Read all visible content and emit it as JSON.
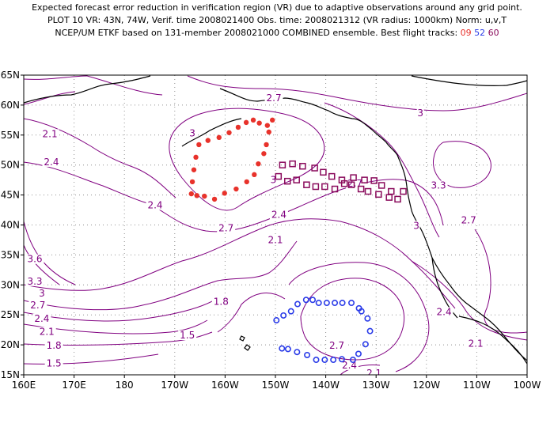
{
  "title_lines": [
    "Expected forecast error reduction in verification region (VR) due to adaptive observations around any grid point.",
    "PLOT 10 VR: 43N, 74W, Verif. time 2008021400 Obs. time: 2008021312 (VR radius: 1000km) Norm: u,v,T",
    "NCEP/UM ETKF based on 131-member 2008021000 COMBINED ensemble.  Best flight tracks: "
  ],
  "flight_labels": [
    {
      "text": "09",
      "color": "#e8322b"
    },
    {
      "text": "52",
      "color": "#2b3ce8"
    },
    {
      "text": "60",
      "color": "#8a0b5c"
    }
  ],
  "colors": {
    "contour": "#800080",
    "coast": "#000000",
    "grid": "#808080"
  },
  "y_ticks": [
    "65N",
    "60N",
    "55N",
    "50N",
    "45N",
    "40N",
    "35N",
    "30N",
    "25N",
    "20N",
    "15N"
  ],
  "x_ticks": [
    "160E",
    "170E",
    "180",
    "170W",
    "160W",
    "150W",
    "140W",
    "130W",
    "120W",
    "110W",
    "100W"
  ],
  "contour_labels": [
    {
      "text": "2.7",
      "lon": -150.3,
      "lat": 60.8
    },
    {
      "text": "3",
      "lon": -166.5,
      "lat": 54.9
    },
    {
      "text": "3",
      "lon": -150.4,
      "lat": 47.1
    },
    {
      "text": "3",
      "lon": -121.2,
      "lat": 58.3
    },
    {
      "text": "2.7",
      "lon": -134.2,
      "lat": 46.5
    },
    {
      "text": "3.3",
      "lon": -117.6,
      "lat": 46.2
    },
    {
      "text": "2.1",
      "lon": 165.2,
      "lat": 54.8
    },
    {
      "text": "2.4",
      "lon": 165.5,
      "lat": 50.1
    },
    {
      "text": "2.4",
      "lon": -173.9,
      "lat": 42.9
    },
    {
      "text": "2.7",
      "lon": -159.8,
      "lat": 39.1
    },
    {
      "text": "2.4",
      "lon": -149.3,
      "lat": 41.3
    },
    {
      "text": "2.1",
      "lon": -150.0,
      "lat": 37.1
    },
    {
      "text": "3",
      "lon": -122.0,
      "lat": 39.5
    },
    {
      "text": "2.7",
      "lon": -111.6,
      "lat": 40.4
    },
    {
      "text": "3.6",
      "lon": 162.2,
      "lat": 33.9
    },
    {
      "text": "3.3",
      "lon": 162.2,
      "lat": 30.2
    },
    {
      "text": "3",
      "lon": 163.6,
      "lat": 28.2
    },
    {
      "text": "2.7",
      "lon": 162.8,
      "lat": 26.2
    },
    {
      "text": "2.4",
      "lon": 163.6,
      "lat": 24.0
    },
    {
      "text": "2.1",
      "lon": 164.6,
      "lat": 21.8
    },
    {
      "text": "1.8",
      "lon": 166.0,
      "lat": 19.5
    },
    {
      "text": "1.5",
      "lon": 166.0,
      "lat": 16.5
    },
    {
      "text": "1.8",
      "lon": -160.8,
      "lat": 26.8
    },
    {
      "text": "1.5",
      "lon": -167.5,
      "lat": 21.2
    },
    {
      "text": "2.7",
      "lon": -137.8,
      "lat": 19.5
    },
    {
      "text": "2.4",
      "lon": -116.5,
      "lat": 25.1
    },
    {
      "text": "2.1",
      "lon": -110.2,
      "lat": 19.8
    },
    {
      "text": "2.4",
      "lon": -135.3,
      "lat": 16.2
    },
    {
      "text": "2.1",
      "lon": -130.4,
      "lat": 14.9
    }
  ],
  "flight_tracks": [
    {
      "id": "09",
      "marker": "dot",
      "color": "#e8322b",
      "points": [
        [
          -166.7,
          45.2
        ],
        [
          -166.5,
          47.2
        ],
        [
          -166.2,
          49.2
        ],
        [
          -165.8,
          51.3
        ],
        [
          -165.2,
          53.4
        ],
        [
          -163.4,
          54.1
        ],
        [
          -161.2,
          54.6
        ],
        [
          -159.2,
          55.4
        ],
        [
          -157.4,
          56.3
        ],
        [
          -155.8,
          57.1
        ],
        [
          -154.4,
          57.5
        ],
        [
          -153.2,
          57.0
        ],
        [
          -151.6,
          56.6
        ],
        [
          -150.6,
          57.5
        ],
        [
          -151.3,
          55.5
        ],
        [
          -151.8,
          53.4
        ],
        [
          -152.3,
          51.9
        ],
        [
          -153.4,
          50.2
        ],
        [
          -154.2,
          48.4
        ],
        [
          -155.7,
          47.2
        ],
        [
          -157.8,
          46.0
        ],
        [
          -160.1,
          45.3
        ],
        [
          -162.1,
          44.3
        ],
        [
          -164.1,
          44.8
        ],
        [
          -165.6,
          44.9
        ]
      ]
    },
    {
      "id": "60",
      "marker": "square",
      "color": "#8a0b5c",
      "points": [
        [
          -149.4,
          48.1
        ],
        [
          -148.6,
          50.0
        ],
        [
          -146.6,
          50.2
        ],
        [
          -144.6,
          49.8
        ],
        [
          -142.2,
          49.5
        ],
        [
          -140.5,
          48.8
        ],
        [
          -138.8,
          48.1
        ],
        [
          -136.8,
          47.5
        ],
        [
          -134.9,
          46.7
        ],
        [
          -133.0,
          46.0
        ],
        [
          -131.6,
          45.6
        ],
        [
          -129.5,
          45.1
        ],
        [
          -127.4,
          44.6
        ],
        [
          -125.7,
          44.3
        ],
        [
          -124.6,
          45.6
        ],
        [
          -127.0,
          45.6
        ],
        [
          -128.9,
          46.6
        ],
        [
          -130.4,
          47.4
        ],
        [
          -132.3,
          47.5
        ],
        [
          -134.5,
          47.9
        ],
        [
          -136.3,
          46.9
        ],
        [
          -138.2,
          46.0
        ],
        [
          -140.2,
          46.4
        ],
        [
          -142.0,
          46.4
        ],
        [
          -143.8,
          46.7
        ],
        [
          -145.8,
          47.5
        ],
        [
          -147.6,
          47.3
        ]
      ]
    },
    {
      "id": "52",
      "marker": "ring",
      "color": "#2b3ce8",
      "points": [
        [
          -149.8,
          24.1
        ],
        [
          -148.4,
          24.9
        ],
        [
          -146.9,
          25.6
        ],
        [
          -145.6,
          26.8
        ],
        [
          -143.9,
          27.5
        ],
        [
          -142.6,
          27.5
        ],
        [
          -141.4,
          27.0
        ],
        [
          -139.8,
          27.0
        ],
        [
          -138.2,
          27.0
        ],
        [
          -136.7,
          27.0
        ],
        [
          -134.9,
          27.0
        ],
        [
          -133.4,
          26.1
        ],
        [
          -132.9,
          25.6
        ],
        [
          -131.7,
          24.4
        ],
        [
          -131.2,
          22.3
        ],
        [
          -132.1,
          20.1
        ],
        [
          -133.5,
          18.5
        ],
        [
          -134.6,
          17.5
        ],
        [
          -136.8,
          17.6
        ],
        [
          -138.5,
          17.5
        ],
        [
          -140.2,
          17.5
        ],
        [
          -141.9,
          17.5
        ],
        [
          -143.7,
          18.3
        ],
        [
          -145.7,
          18.8
        ],
        [
          -147.5,
          19.3
        ],
        [
          -148.7,
          19.4
        ]
      ]
    }
  ]
}
